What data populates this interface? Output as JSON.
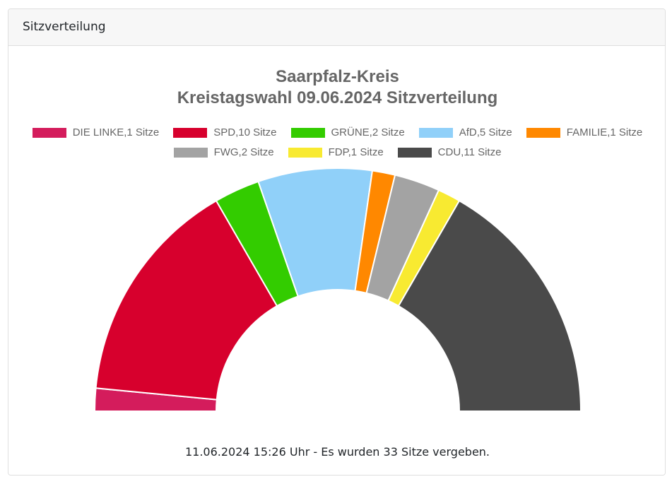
{
  "card": {
    "header_title": "Sitzverteilung"
  },
  "chart_data": {
    "type": "pie",
    "variant": "half-doughnut",
    "title": [
      "Saarpfalz-Kreis",
      "Kreistagswahl 09.06.2024 Sitzverteilung"
    ],
    "legend_position": "top",
    "series": [
      {
        "name": "DIE LINKE",
        "label": "DIE LINKE,1 Sitze",
        "value": 1,
        "color": "#d41c5c"
      },
      {
        "name": "SPD",
        "label": "SPD,10 Sitze",
        "value": 10,
        "color": "#d7002d"
      },
      {
        "name": "GRÜNE",
        "label": "GRÜNE,2 Sitze",
        "value": 2,
        "color": "#33cc00"
      },
      {
        "name": "AfD",
        "label": "AfD,5 Sitze",
        "value": 5,
        "color": "#90d0f9"
      },
      {
        "name": "FAMILIE",
        "label": "FAMILIE,1 Sitze",
        "value": 1,
        "color": "#ff8800"
      },
      {
        "name": "FWG",
        "label": "FWG,2 Sitze",
        "value": 2,
        "color": "#a3a3a3"
      },
      {
        "name": "FDP",
        "label": "FDP,1 Sitze",
        "value": 1,
        "color": "#f8ea31"
      },
      {
        "name": "CDU",
        "label": "CDU,11 Sitze",
        "value": 11,
        "color": "#4a4a4a"
      }
    ]
  },
  "footer": {
    "text": "11.06.2024 15:26 Uhr - Es wurden 33 Sitze vergeben."
  }
}
